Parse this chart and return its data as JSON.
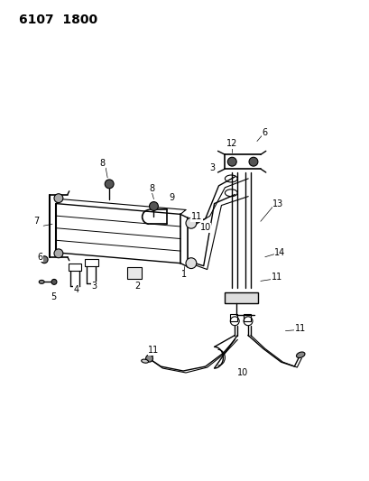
{
  "title": "6107  1800",
  "background_color": "#ffffff",
  "line_color": "#000000",
  "figsize": [
    4.1,
    5.33
  ],
  "dpi": 100,
  "title_fontsize": 10,
  "label_fontsize": 7
}
